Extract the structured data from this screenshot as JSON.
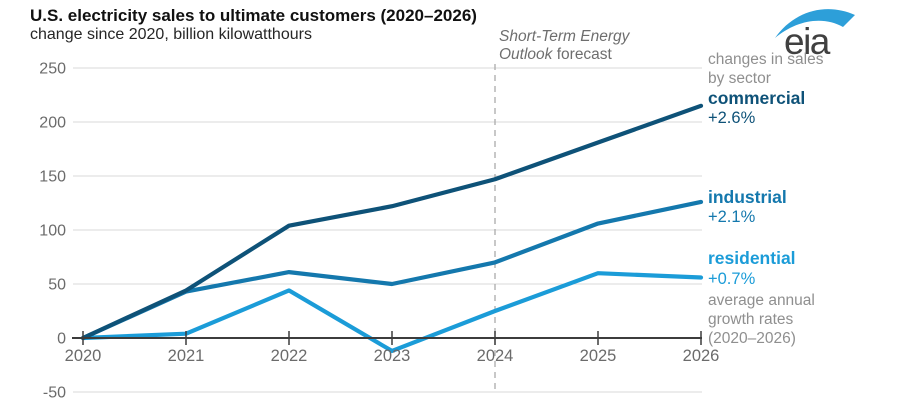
{
  "header": {
    "title": "U.S. electricity sales to ultimate customers (2020–2026)",
    "subtitle": "change since 2020, billion kilowatthours"
  },
  "logo": {
    "text": "eia"
  },
  "forecast_note": {
    "italic": "Short-Term Energy Outlook",
    "regular": " forecast"
  },
  "side_notes": {
    "sector": "changes in sales by sector",
    "growth": "average annual growth rates (2020–2026)"
  },
  "legend": [
    {
      "label": "commercial",
      "rate": "+2.6%",
      "color": "#0e5278"
    },
    {
      "label": "industrial",
      "rate": "+2.1%",
      "color": "#1478ad"
    },
    {
      "label": "residential",
      "rate": "+0.7%",
      "color": "#1b9cd8"
    }
  ],
  "chart_data": {
    "type": "line",
    "title": "U.S. electricity sales to ultimate customers (2020–2026)",
    "ylabel": "change since 2020, billion kilowatthours",
    "x": [
      2020,
      2021,
      2022,
      2023,
      2024,
      2025,
      2026
    ],
    "series": [
      {
        "name": "commercial",
        "color": "#0e5278",
        "values": [
          0,
          44,
          104,
          122,
          147,
          181,
          215
        ]
      },
      {
        "name": "industrial",
        "color": "#1478ad",
        "values": [
          0,
          43,
          61,
          50,
          70,
          106,
          126
        ]
      },
      {
        "name": "residential",
        "color": "#1b9cd8",
        "values": [
          0,
          4,
          44,
          -12,
          25,
          60,
          56
        ]
      }
    ],
    "ylim": [
      -50,
      250
    ],
    "yticks": [
      250,
      200,
      150,
      100,
      50,
      0,
      -50
    ],
    "xticks": [
      2020,
      2021,
      2022,
      2023,
      2024,
      2025,
      2026
    ],
    "forecast_boundary_year": 2024,
    "forecast_label": "Short-Term Energy Outlook forecast",
    "grid": true,
    "legend_position": "right",
    "legend_rates": {
      "commercial": "+2.6%",
      "industrial": "+2.1%",
      "residential": "+0.7%"
    }
  },
  "colors": {
    "axis": "#3c3c3c",
    "gridline": "#d9d9d9",
    "dashed_line": "#ababab",
    "axis_label": "#6b6b6b",
    "note_gray": "#8f8f8f",
    "logo_swoosh": "#2d9fd9",
    "logo_text": "#404040"
  }
}
